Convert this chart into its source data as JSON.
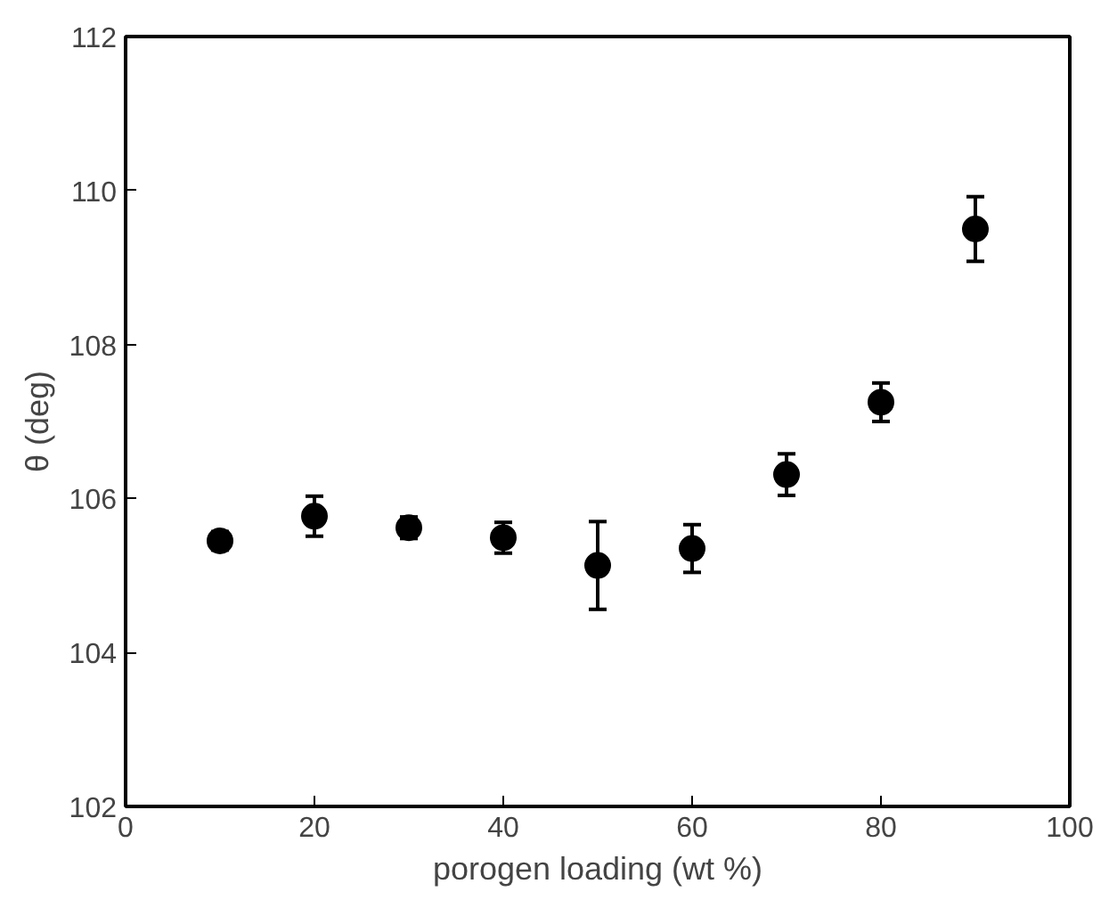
{
  "chart_data": {
    "type": "scatter",
    "xlabel": "porogen loading (wt %)",
    "ylabel": "θ (deg)",
    "x": [
      10,
      20,
      30,
      40,
      50,
      60,
      70,
      80,
      90
    ],
    "values": [
      105.45,
      105.77,
      105.62,
      105.49,
      105.13,
      105.35,
      106.31,
      107.25,
      109.5
    ],
    "errors": [
      0.12,
      0.26,
      0.14,
      0.2,
      0.57,
      0.31,
      0.27,
      0.25,
      0.42
    ],
    "color": "#000000",
    "marker": "circle",
    "xlim": [
      0,
      100
    ],
    "xticks": [
      0,
      20,
      40,
      60,
      80,
      100
    ],
    "ylim": [
      102,
      112
    ],
    "yticks": [
      102,
      104,
      106,
      108,
      110,
      112
    ],
    "grid": false
  }
}
